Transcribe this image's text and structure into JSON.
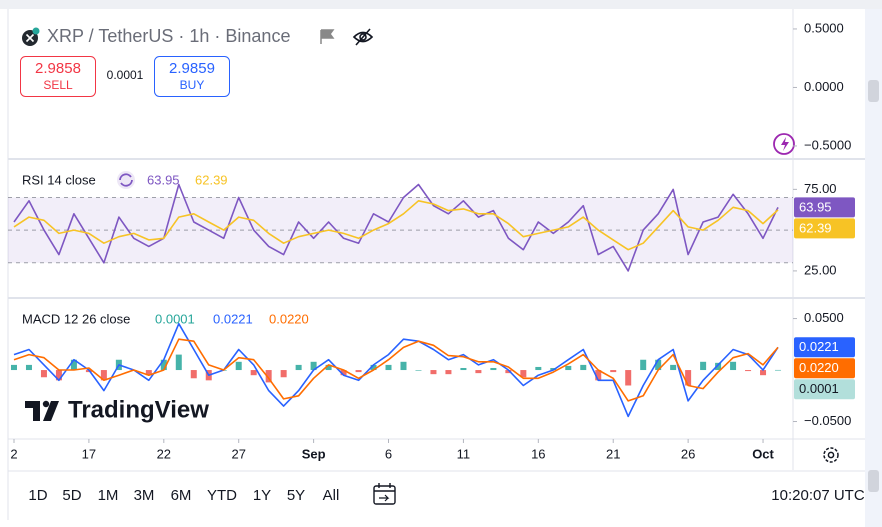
{
  "header": {
    "symbol": "XRP / TetherUS · 1h · Binance",
    "sell_price": "2.9858",
    "sell_label": "SELL",
    "spread": "0.0001",
    "buy_price": "2.9859",
    "buy_label": "BUY"
  },
  "logo": "TradingView",
  "toolbar": {
    "ranges": [
      "1D",
      "5D",
      "1M",
      "3M",
      "6M",
      "YTD",
      "1Y",
      "5Y",
      "All"
    ],
    "clock": "10:20:07 UTC"
  },
  "chart_data": [
    {
      "type": "line",
      "ylim": [
        -0.603,
        0.662
      ],
      "yticks": [
        {
          "value": 0.5,
          "label": "0.5000"
        },
        {
          "value": 0,
          "label": "0.0000"
        },
        {
          "value": -0.5,
          "label": "−0.5000"
        }
      ]
    },
    {
      "type": "line",
      "title": "RSI 14 close",
      "x": [
        12,
        13,
        14,
        15,
        16,
        17,
        18,
        19,
        20,
        21,
        22,
        23,
        24,
        25,
        26,
        27,
        28,
        29,
        30,
        31,
        32,
        33,
        34,
        35,
        36,
        37,
        38,
        39,
        40,
        41,
        42,
        43,
        44,
        45,
        46,
        47,
        48,
        49,
        50,
        51,
        52,
        53,
        54,
        55,
        56,
        57,
        58,
        59,
        60,
        61,
        62,
        63
      ],
      "xlim": [
        11.6,
        64
      ],
      "ylim": [
        9,
        93
      ],
      "yticks": [
        {
          "value": 75,
          "label": "75.00"
        },
        {
          "value": 25,
          "label": "25.00"
        }
      ],
      "band_levels": [
        70,
        50,
        30
      ],
      "band_color": "#7e57c2",
      "series": [
        {
          "color": "#7e57c2",
          "values": [
            55,
            68,
            50,
            35,
            60,
            45,
            30,
            58,
            45,
            40,
            45,
            78,
            55,
            50,
            45,
            70,
            50,
            40,
            35,
            55,
            45,
            55,
            45,
            42,
            60,
            55,
            70,
            78,
            65,
            60,
            68,
            58,
            62,
            45,
            38,
            55,
            48,
            55,
            65,
            35,
            40,
            25,
            50,
            60,
            75,
            35,
            55,
            58,
            72,
            60,
            45,
            63.95
          ]
        },
        {
          "color": "#f7c325",
          "values": [
            52,
            58,
            56,
            48,
            50,
            48,
            42,
            46,
            48,
            44,
            45,
            58,
            60,
            55,
            50,
            58,
            56,
            48,
            42,
            46,
            48,
            50,
            48,
            45,
            50,
            54,
            60,
            68,
            66,
            62,
            63,
            60,
            60,
            54,
            46,
            48,
            50,
            52,
            58,
            50,
            44,
            38,
            42,
            52,
            62,
            52,
            50,
            56,
            64,
            62,
            54,
            62.39
          ]
        }
      ]
    },
    {
      "type": "line",
      "title": "MACD 12 26 close",
      "x": [
        12,
        13,
        14,
        15,
        16,
        17,
        18,
        19,
        20,
        21,
        22,
        23,
        24,
        25,
        26,
        27,
        28,
        29,
        30,
        31,
        32,
        33,
        34,
        35,
        36,
        37,
        38,
        39,
        40,
        41,
        42,
        43,
        44,
        45,
        46,
        47,
        48,
        49,
        50,
        51,
        52,
        53,
        54,
        55,
        56,
        57,
        58,
        59,
        60,
        61,
        62,
        63
      ],
      "xlim": [
        11.6,
        64
      ],
      "ylim": [
        -0.066,
        0.069
      ],
      "yticks": [
        {
          "value": 0.05,
          "label": "0.0500"
        },
        {
          "value": -0.05,
          "label": "−0.0500"
        }
      ],
      "xticks": [
        {
          "value": 12,
          "label": "2"
        },
        17,
        22,
        27,
        {
          "value": 32,
          "label": "Sep"
        },
        {
          "value": 37,
          "label": "6"
        },
        {
          "value": 42,
          "label": "11"
        },
        {
          "value": 47,
          "label": "16"
        },
        {
          "value": 52,
          "label": "21"
        },
        {
          "value": 57,
          "label": "26"
        },
        {
          "value": 62,
          "label": "Oct"
        }
      ],
      "series": [
        {
          "type": "bar",
          "color": "#26a69a",
          "negative_color": "#ef5350",
          "label_color": "#b2dfdb",
          "values": [
            0.005,
            0.005,
            -0.007,
            -0.01,
            0.01,
            -0.002,
            -0.01,
            0.01,
            0,
            -0.005,
            0.01,
            0.015,
            -0.008,
            -0.01,
            0,
            0.008,
            -0.005,
            -0.012,
            -0.007,
            0.005,
            0.008,
            0.005,
            -0.005,
            -0.002,
            0.005,
            0.005,
            0.008,
            0,
            -0.004,
            -0.004,
            0.002,
            -0.003,
            0.002,
            -0.003,
            -0.007,
            0.003,
            0.002,
            0.004,
            0.005,
            -0.01,
            -0.002,
            -0.015,
            0.01,
            0.01,
            0.005,
            -0.015,
            0.008,
            0.007,
            0.008,
            -0.001,
            -0.005,
            0.0001
          ]
        },
        {
          "type": "line",
          "color": "#2962ff",
          "values": [
            0.015,
            0.02,
            0.005,
            -0.01,
            0.01,
            0,
            -0.02,
            0.005,
            0,
            -0.01,
            0.01,
            0.045,
            0.02,
            -0.005,
            0,
            0.02,
            0.005,
            -0.02,
            -0.035,
            -0.02,
            0,
            0.01,
            -0.005,
            -0.01,
            0.005,
            0.015,
            0.03,
            0.028,
            0.02,
            0.01,
            0.015,
            0.005,
            0.01,
            0,
            -0.015,
            -0.005,
            0,
            0.01,
            0.02,
            -0.01,
            -0.01,
            -0.045,
            -0.015,
            0.01,
            0.02,
            -0.03,
            -0.01,
            0.005,
            0.02,
            0.015,
            0,
            0.0221
          ]
        },
        {
          "type": "line",
          "color": "#ff6d00",
          "values": [
            0.01,
            0.015,
            0.012,
            0,
            0,
            0.002,
            -0.01,
            -0.005,
            0,
            -0.005,
            0,
            0.03,
            0.028,
            0.005,
            0,
            0.012,
            0.01,
            -0.008,
            -0.028,
            -0.025,
            -0.008,
            0.005,
            0,
            -0.008,
            0,
            0.01,
            0.022,
            0.028,
            0.024,
            0.014,
            0.013,
            0.008,
            0.008,
            0.003,
            -0.008,
            -0.008,
            -0.002,
            0.006,
            0.015,
            0,
            -0.008,
            -0.03,
            -0.025,
            0,
            0.015,
            -0.015,
            -0.018,
            -0.002,
            0.012,
            0.016,
            0.005,
            0.022
          ],
          "value_labels": [
            null,
            null,
            null,
            null,
            null,
            null,
            null,
            null,
            null,
            null,
            null,
            null,
            null,
            null,
            null,
            null,
            null,
            null,
            null,
            null,
            null,
            null,
            null,
            null,
            null,
            null,
            null,
            null,
            null,
            null,
            null,
            null,
            null,
            null,
            null,
            null,
            null,
            null,
            null,
            null,
            null,
            null,
            null,
            null,
            null,
            null,
            null,
            null,
            null,
            null,
            null,
            "0.0220"
          ]
        }
      ]
    }
  ]
}
